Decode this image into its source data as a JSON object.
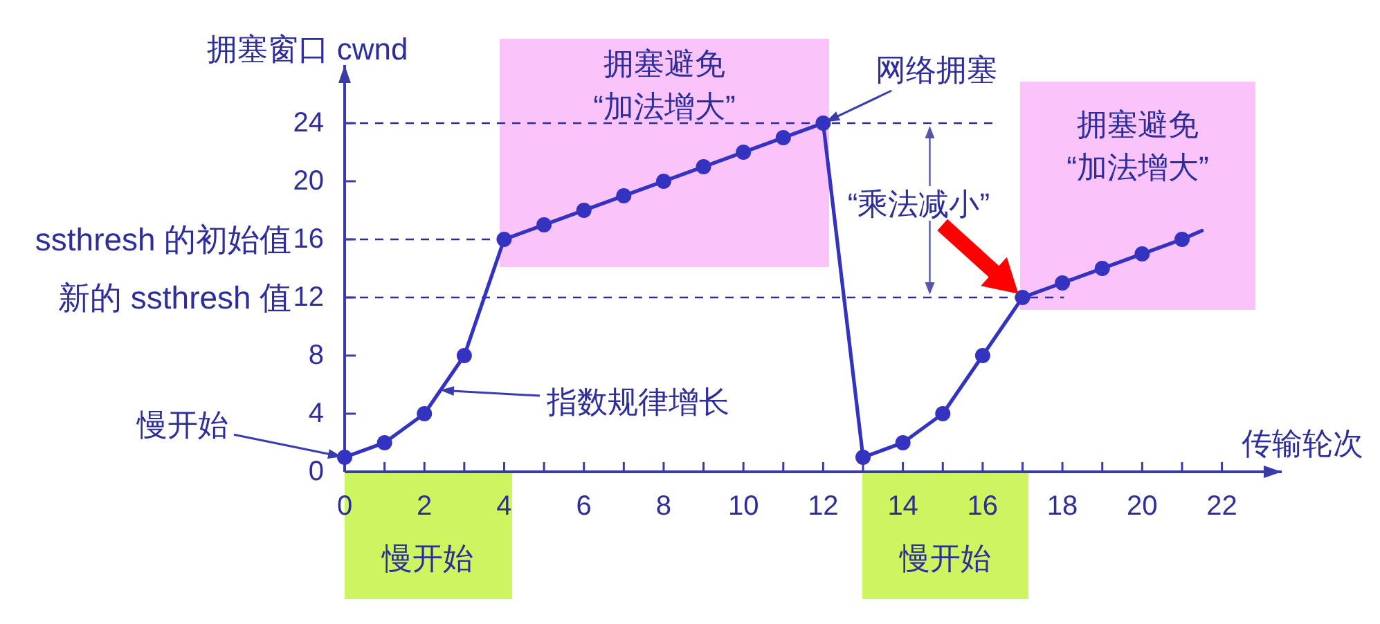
{
  "chart_data": {
    "type": "line",
    "xlabel": "传输轮次",
    "ylabel": "拥塞窗口 cwnd",
    "xlim": [
      0,
      23.5
    ],
    "ylim": [
      0,
      28
    ],
    "xticks": [
      0,
      {
        "value": 1,
        "label": null
      },
      2,
      {
        "value": 3,
        "label": null
      },
      4,
      {
        "value": 5,
        "label": null
      },
      6,
      {
        "value": 7,
        "label": null
      },
      8,
      {
        "value": 9,
        "label": null
      },
      10,
      {
        "value": 11,
        "label": null
      },
      12,
      {
        "value": 13,
        "label": null
      },
      14,
      {
        "value": 15,
        "label": null
      },
      16,
      {
        "value": 17,
        "label": null
      },
      18,
      {
        "value": 19,
        "label": null
      },
      20,
      {
        "value": 21,
        "label": null
      },
      22
    ],
    "yticks": [
      0,
      4,
      8,
      12,
      16,
      20,
      24
    ],
    "marker": "circle",
    "line_style": "solid",
    "series": [
      {
        "color": "#3333c0",
        "x": [
          0,
          1,
          2,
          3,
          4,
          5,
          6,
          7,
          8,
          9,
          10,
          11,
          12,
          13,
          14,
          15,
          16,
          17,
          18,
          19,
          20,
          21
        ],
        "values": [
          1,
          2,
          4,
          8,
          16,
          17,
          18,
          19,
          20,
          21,
          22,
          23,
          24,
          1,
          2,
          4,
          8,
          12,
          13,
          14,
          15,
          16
        ]
      },
      {
        "color": "#3333c0",
        "x": [
          21,
          21.5
        ],
        "values": [
          16,
          16.6
        ],
        "marker": "none"
      }
    ],
    "ref_lines": [
      {
        "axis": "y",
        "value": 24,
        "color": "#2e2e99",
        "line_style": "dashed"
      },
      {
        "axis": "y",
        "value": 16,
        "label": "ssthresh 的初始值",
        "color": "#2e2e99",
        "line_style": "dashed"
      },
      {
        "axis": "y",
        "value": 12,
        "label": "新的 ssthresh 值",
        "color": "#2e2e99",
        "line_style": "dashed"
      }
    ],
    "annotations": [
      "拥塞避免\n“加法增大”",
      {
        "text": "网络拥塞",
        "x": 12,
        "y": 24
      },
      "拥塞避免\n“加法增大”",
      {
        "text": "“乘法减小”",
        "x": 17,
        "y": 12
      },
      {
        "text": "慢开始",
        "x": 0,
        "y": 1
      },
      "指数规律增长",
      "慢开始",
      "慢开始"
    ]
  }
}
